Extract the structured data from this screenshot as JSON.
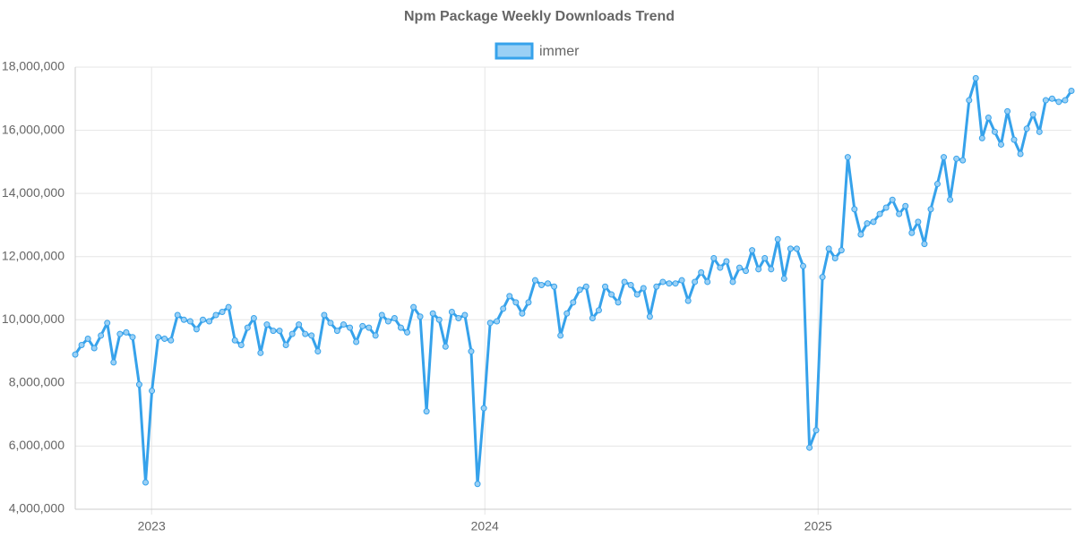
{
  "chart_data": {
    "type": "line",
    "title": "Npm Package Weekly Downloads Trend",
    "x": [
      2022.771,
      2022.79,
      2022.809,
      2022.828,
      2022.848,
      2022.867,
      2022.886,
      2022.905,
      2022.924,
      2022.943,
      2022.963,
      2022.982,
      2023.001,
      2023.02,
      2023.039,
      2023.058,
      2023.078,
      2023.097,
      2023.116,
      2023.135,
      2023.154,
      2023.173,
      2023.193,
      2023.212,
      2023.231,
      2023.25,
      2023.269,
      2023.288,
      2023.307,
      2023.327,
      2023.346,
      2023.365,
      2023.384,
      2023.403,
      2023.422,
      2023.442,
      2023.461,
      2023.48,
      2023.499,
      2023.518,
      2023.537,
      2023.557,
      2023.576,
      2023.595,
      2023.614,
      2023.633,
      2023.652,
      2023.672,
      2023.691,
      2023.71,
      2023.729,
      2023.748,
      2023.767,
      2023.786,
      2023.806,
      2023.825,
      2023.844,
      2023.863,
      2023.882,
      2023.901,
      2023.921,
      2023.94,
      2023.959,
      2023.978,
      2023.997,
      2024.016,
      2024.036,
      2024.055,
      2024.074,
      2024.093,
      2024.112,
      2024.131,
      2024.151,
      2024.17,
      2024.189,
      2024.208,
      2024.227,
      2024.246,
      2024.265,
      2024.285,
      2024.304,
      2024.323,
      2024.342,
      2024.361,
      2024.38,
      2024.4,
      2024.419,
      2024.438,
      2024.457,
      2024.476,
      2024.495,
      2024.515,
      2024.534,
      2024.553,
      2024.572,
      2024.591,
      2024.61,
      2024.63,
      2024.649,
      2024.668,
      2024.687,
      2024.706,
      2024.725,
      2024.744,
      2024.764,
      2024.783,
      2024.802,
      2024.821,
      2024.84,
      2024.859,
      2024.879,
      2024.898,
      2024.917,
      2024.936,
      2024.955,
      2024.974,
      2024.994,
      2025.013,
      2025.032,
      2025.051,
      2025.07,
      2025.089,
      2025.109,
      2025.128,
      2025.147,
      2025.166,
      2025.185,
      2025.204,
      2025.223,
      2025.243,
      2025.262,
      2025.281,
      2025.3,
      2025.319,
      2025.338,
      2025.358,
      2025.377,
      2025.396,
      2025.415,
      2025.434,
      2025.453,
      2025.473,
      2025.492,
      2025.511,
      2025.53,
      2025.549,
      2025.568,
      2025.588,
      2025.607,
      2025.626,
      2025.645,
      2025.664,
      2025.683,
      2025.702,
      2025.722,
      2025.741,
      2025.76
    ],
    "series": [
      {
        "name": "immer",
        "color": "#36a2eb",
        "values": [
          8900000,
          9200000,
          9400000,
          9100000,
          9500000,
          9900000,
          8650000,
          9550000,
          9600000,
          9450000,
          7950000,
          4850000,
          7750000,
          9450000,
          9400000,
          9350000,
          10150000,
          10000000,
          9950000,
          9700000,
          10000000,
          9950000,
          10150000,
          10250000,
          10400000,
          9350000,
          9200000,
          9750000,
          10050000,
          8950000,
          9850000,
          9650000,
          9650000,
          9200000,
          9550000,
          9850000,
          9550000,
          9500000,
          9000000,
          10150000,
          9900000,
          9650000,
          9850000,
          9750000,
          9300000,
          9800000,
          9750000,
          9500000,
          10150000,
          9950000,
          10050000,
          9750000,
          9600000,
          10400000,
          10100000,
          7100000,
          10200000,
          10000000,
          9150000,
          10250000,
          10050000,
          10150000,
          9000000,
          4800000,
          7200000,
          9900000,
          9950000,
          10350000,
          10750000,
          10550000,
          10200000,
          10550000,
          11250000,
          11100000,
          11150000,
          11050000,
          9500000,
          10200000,
          10550000,
          10950000,
          11050000,
          10050000,
          10300000,
          11050000,
          10800000,
          10550000,
          11200000,
          11100000,
          10800000,
          11000000,
          10100000,
          11050000,
          11200000,
          11150000,
          11150000,
          11250000,
          10600000,
          11200000,
          11500000,
          11200000,
          11950000,
          11650000,
          11850000,
          11200000,
          11650000,
          11550000,
          12200000,
          11600000,
          11950000,
          11600000,
          12550000,
          11300000,
          12250000,
          12250000,
          11700000,
          5950000,
          6500000,
          11350000,
          12250000,
          11950000,
          12200000,
          15150000,
          13500000,
          12700000,
          13050000,
          13100000,
          13350000,
          13550000,
          13800000,
          13350000,
          13600000,
          12750000,
          13100000,
          12400000,
          13500000,
          14300000,
          15150000,
          13800000,
          15100000,
          15050000,
          16950000,
          17650000,
          15750000,
          16400000,
          15950000,
          15550000,
          16600000,
          15700000,
          15250000,
          16050000,
          16500000,
          15950000,
          16950000,
          17000000,
          16900000,
          16950000,
          17250000
        ]
      }
    ],
    "xlim": [
      2022.771,
      2025.76
    ],
    "xticks": [
      2023,
      2024,
      2025
    ],
    "ylim": [
      4000000,
      18000000
    ],
    "yticks": [
      {
        "value": 4000000,
        "label": "4,000,000"
      },
      {
        "value": 6000000,
        "label": "6,000,000"
      },
      {
        "value": 8000000,
        "label": "8,000,000"
      },
      {
        "value": 10000000,
        "label": "10,000,000"
      },
      {
        "value": 12000000,
        "label": "12,000,000"
      },
      {
        "value": 14000000,
        "label": "14,000,000"
      },
      {
        "value": 16000000,
        "label": "16,000,000"
      },
      {
        "value": 18000000,
        "label": "18,000,000"
      }
    ],
    "grid": true,
    "legend": "top"
  }
}
